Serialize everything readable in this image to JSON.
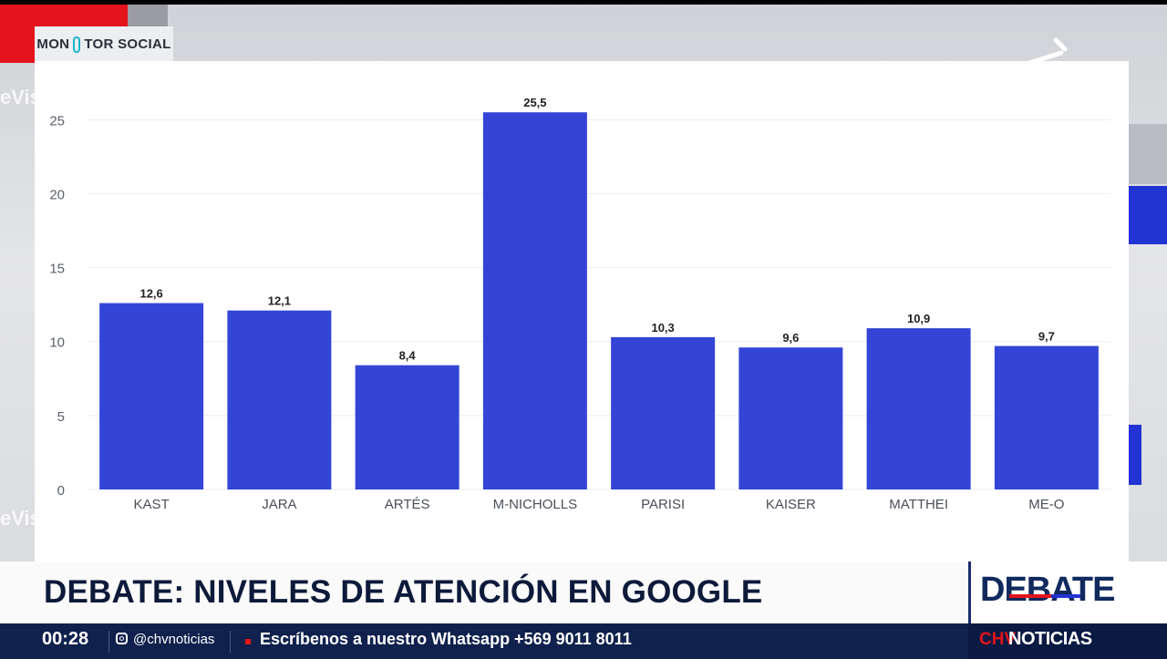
{
  "overlay": {
    "tag_left": "MON",
    "tag_right": "TOR SOCIAL",
    "bg_text": "eVis",
    "lower_title": "DEBATE: NIVELES DE ATENCIÓN EN GOOGLE",
    "debate_logo": "DEBATE"
  },
  "ticker": {
    "time": "00:28",
    "handle": "@chvnoticias",
    "message": "Escríbenos a nuestro Whatsapp +569 9011 8011",
    "brand_chv": "CHV",
    "brand_noticias": "NOTICIAS"
  },
  "colors": {
    "bar": "#3344d6",
    "accent_red": "#e3141d",
    "navy": "#10214d"
  },
  "chart_data": {
    "type": "bar",
    "title": "",
    "xlabel": "",
    "ylabel": "",
    "categories": [
      "KAST",
      "JARA",
      "ARTÉS",
      "M-NICHOLLS",
      "PARISI",
      "KAISER",
      "MATTHEI",
      "ME-O"
    ],
    "values": [
      12.6,
      12.1,
      8.4,
      25.5,
      10.3,
      9.6,
      10.9,
      9.7
    ],
    "value_labels": [
      "12,6",
      "12,1",
      "8,4",
      "25,5",
      "10,3",
      "9,6",
      "10,9",
      "9,7"
    ],
    "ylim": [
      0,
      26.5
    ],
    "yticks": [
      0,
      5,
      10,
      15,
      20,
      25
    ],
    "grid": true,
    "legend": "none"
  }
}
